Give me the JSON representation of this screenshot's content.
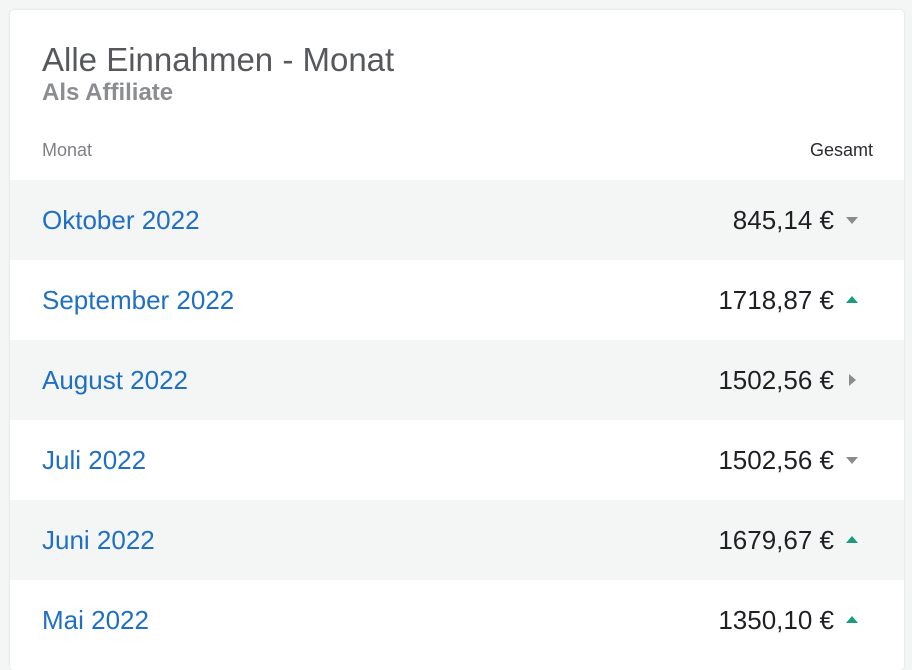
{
  "card": {
    "title": "Alle Einnahmen - Monat",
    "subtitle": "Als Affiliate"
  },
  "columns": {
    "month": "Monat",
    "total": "Gesamt"
  },
  "colors": {
    "link": "#1f6fc4",
    "trend_up": "#1a9a82",
    "trend_down": "#8a8c90",
    "trend_flat": "#8a8c90"
  },
  "rows": [
    {
      "month": "Oktober 2022",
      "amount": "845,14 €",
      "trend": "down",
      "trend_icon": "caret-down-icon"
    },
    {
      "month": "September 2022",
      "amount": "1718,87 €",
      "trend": "up",
      "trend_icon": "caret-up-icon"
    },
    {
      "month": "August 2022",
      "amount": "1502,56 €",
      "trend": "flat",
      "trend_icon": "caret-right-icon"
    },
    {
      "month": "Juli 2022",
      "amount": "1502,56 €",
      "trend": "down",
      "trend_icon": "caret-down-icon"
    },
    {
      "month": "Juni 2022",
      "amount": "1679,67 €",
      "trend": "up",
      "trend_icon": "caret-up-icon"
    },
    {
      "month": "Mai 2022",
      "amount": "1350,10 €",
      "trend": "up",
      "trend_icon": "caret-up-icon"
    }
  ]
}
